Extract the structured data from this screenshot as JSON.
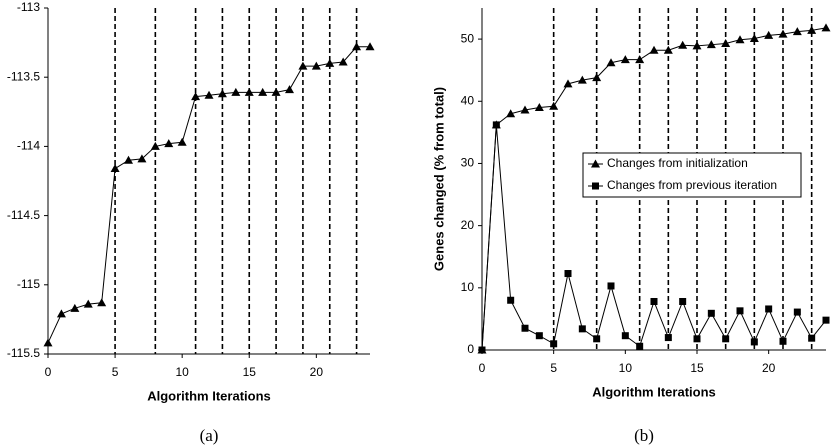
{
  "chart_data": [
    {
      "type": "line",
      "caption": "(a)",
      "xlabel": "Algorithm Iterations",
      "x": [
        0,
        1,
        2,
        3,
        4,
        5,
        6,
        7,
        8,
        9,
        10,
        11,
        12,
        13,
        14,
        15,
        16,
        17,
        18,
        19,
        20,
        21,
        22,
        23,
        24
      ],
      "series": [
        {
          "marker": "triangle",
          "color": "#000000",
          "values": [
            -115.42,
            -115.21,
            -115.17,
            -115.14,
            -115.13,
            -114.16,
            -114.1,
            -114.09,
            -114.0,
            -113.98,
            -113.97,
            -113.64,
            -113.63,
            -113.62,
            -113.61,
            -113.61,
            -113.61,
            -113.61,
            -113.59,
            -113.42,
            -113.42,
            -113.4,
            -113.39,
            -113.28,
            -113.28
          ]
        }
      ],
      "dashed_x": [
        5,
        8,
        11,
        13,
        15,
        17,
        19,
        21,
        23
      ],
      "xlim": [
        0,
        24
      ],
      "xticks": [
        0,
        5,
        10,
        15,
        20
      ],
      "ylim": [
        -115.5,
        -113
      ],
      "yticks": [
        -113,
        -113.5,
        -114,
        -114.5,
        -115,
        -115.5
      ]
    },
    {
      "type": "line",
      "caption": "(b)",
      "xlabel": "Algorithm Iterations",
      "ylabel": "Genes changed (% from total)",
      "x": [
        0,
        1,
        2,
        3,
        4,
        5,
        6,
        7,
        8,
        9,
        10,
        11,
        12,
        13,
        14,
        15,
        16,
        17,
        18,
        19,
        20,
        21,
        22,
        23,
        24
      ],
      "series": [
        {
          "name": "Changes from initialization",
          "marker": "triangle",
          "color": "#000000",
          "values": [
            0,
            36.2,
            38.0,
            38.6,
            39.0,
            39.2,
            42.8,
            43.4,
            43.8,
            46.2,
            46.7,
            46.7,
            48.2,
            48.2,
            49.0,
            48.9,
            49.1,
            49.3,
            49.9,
            50.1,
            50.6,
            50.8,
            51.2,
            51.4,
            51.8
          ]
        },
        {
          "name": "Changes from previous iteration",
          "marker": "square",
          "color": "#000000",
          "values": [
            0,
            36.2,
            8.0,
            3.5,
            2.3,
            1.0,
            12.3,
            3.4,
            1.8,
            10.3,
            2.3,
            0.6,
            7.8,
            2.0,
            7.8,
            1.8,
            5.9,
            1.8,
            6.3,
            1.3,
            6.6,
            1.4,
            6.1,
            1.9,
            4.8
          ]
        }
      ],
      "dashed_x": [
        5,
        8,
        11,
        13,
        15,
        17,
        19,
        21,
        23
      ],
      "xlim": [
        0,
        24
      ],
      "xticks": [
        0,
        5,
        10,
        15,
        20
      ],
      "ylim": [
        0,
        55
      ],
      "yticks": [
        0,
        10,
        20,
        30,
        40,
        50
      ]
    }
  ]
}
